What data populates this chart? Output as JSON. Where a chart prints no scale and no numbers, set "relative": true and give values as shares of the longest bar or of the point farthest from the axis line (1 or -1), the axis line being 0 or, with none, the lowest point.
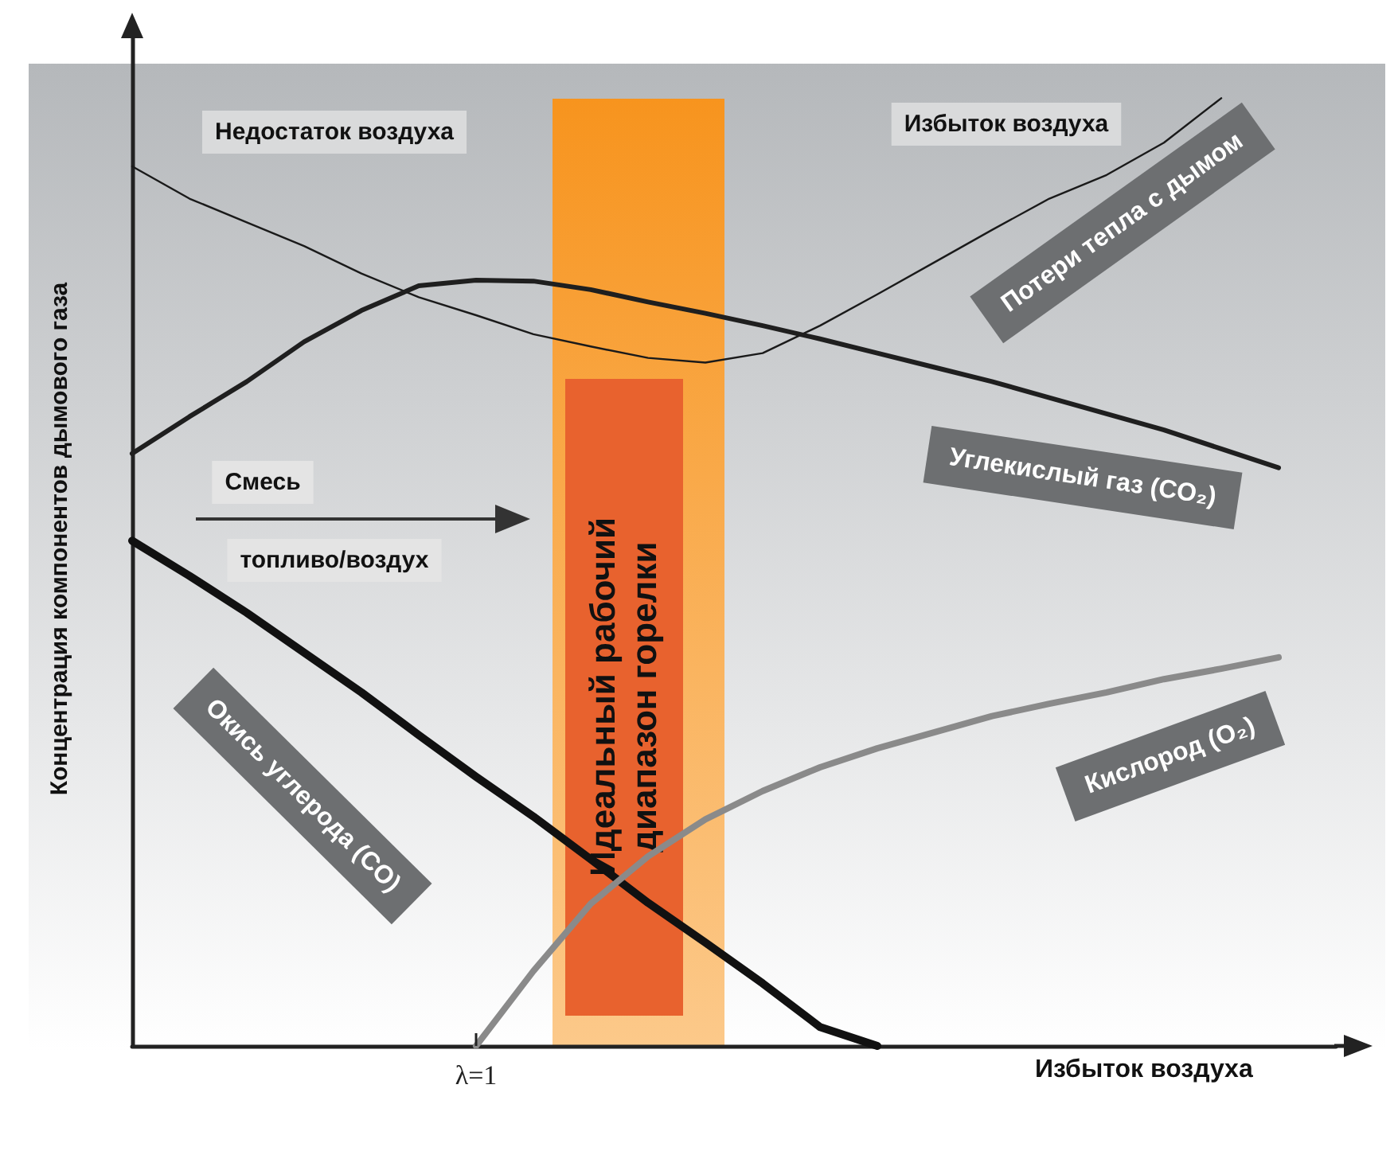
{
  "chart_data": {
    "type": "line",
    "relative": true,
    "xlabel": "Избыток воздуха",
    "ylabel": "Концентрация компонентов дымового газа",
    "legend": false,
    "grid": false,
    "marker": "none",
    "line_style": "solid",
    "categories": [
      null,
      null,
      null,
      null,
      null,
      null,
      null,
      null,
      null,
      null,
      null,
      null,
      null,
      null,
      null,
      null,
      null,
      null,
      null,
      null,
      null,
      null
    ],
    "series": [
      {
        "name": "Потери тепла с дымом",
        "color": "#1a1a1a",
        "values": [
          0.928,
          0.894,
          0.869,
          0.844,
          0.815,
          0.79,
          0.771,
          0.751,
          0.738,
          0.726,
          0.721,
          0.731,
          0.76,
          0.793,
          0.827,
          0.861,
          0.894,
          0.919,
          0.953,
          1,
          null,
          null
        ]
      },
      {
        "name": "Углекислый газ (CO₂)",
        "color": "#1f1f1f",
        "values": [
          0.625,
          0.664,
          0.701,
          0.743,
          0.776,
          0.802,
          0.808,
          0.807,
          0.798,
          0.785,
          0.773,
          0.76,
          0.746,
          0.731,
          0.716,
          0.701,
          0.684,
          0.667,
          0.65,
          0.63,
          0.61,
          null
        ]
      },
      {
        "name": "Окись углерода (CO)",
        "color": "#111111",
        "values": [
          0.533,
          0.496,
          0.457,
          0.415,
          0.373,
          0.328,
          0.284,
          0.242,
          0.197,
          0.151,
          0.109,
          0.066,
          0.02,
          0,
          null,
          null,
          null,
          null,
          null,
          null,
          null,
          null
        ]
      },
      {
        "name": "Кислород (O₂)",
        "color": "#8a8a8a",
        "values": [
          null,
          null,
          null,
          null,
          null,
          null,
          0,
          0.079,
          0.15,
          0.2,
          0.239,
          0.269,
          0.294,
          0.314,
          0.331,
          0.348,
          0.361,
          0.373,
          0.387,
          0.398,
          0.41,
          null
        ]
      }
    ],
    "annotations": [
      "Недостаток воздуха",
      "Избыток воздуха",
      "Смесь",
      "топливо/воздух",
      "λ=1",
      "Идеальный рабочий\nдиапазон горелки"
    ]
  }
}
